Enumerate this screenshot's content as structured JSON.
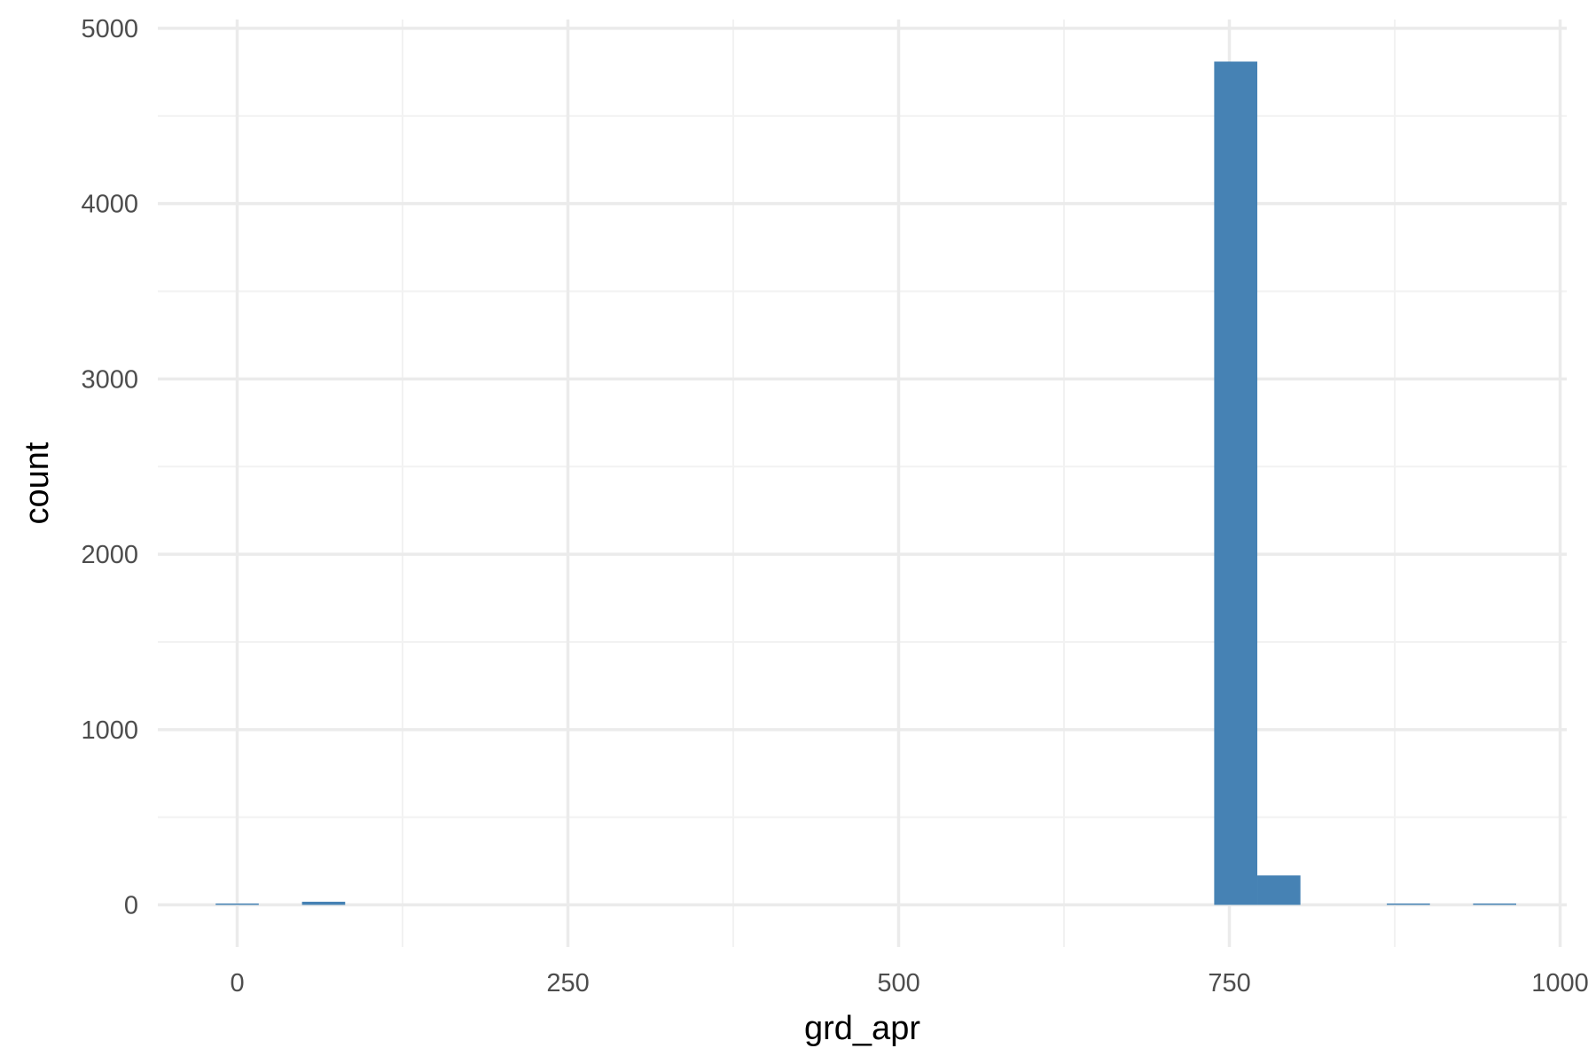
{
  "chart_data": {
    "type": "histogram",
    "title": "",
    "xlabel": "grd_apr",
    "ylabel": "count",
    "xlim": [
      -60,
      1005
    ],
    "ylim": [
      -240,
      5050
    ],
    "x_ticks": [
      0,
      250,
      500,
      750,
      1000
    ],
    "x_tick_labels": [
      "0",
      "250",
      "500",
      "750",
      "1000"
    ],
    "x_minor_ticks": [
      125,
      375,
      625,
      875
    ],
    "y_ticks": [
      0,
      1000,
      2000,
      3000,
      4000,
      5000
    ],
    "y_tick_labels": [
      "0",
      "1000",
      "2000",
      "3000",
      "4000",
      "5000"
    ],
    "y_minor_ticks": [
      500,
      1500,
      2500,
      3500,
      4500
    ],
    "grid": true,
    "bin_width": 32.6,
    "bins": [
      {
        "x0": -16.3,
        "x1": 16.3,
        "count": 4
      },
      {
        "x0": 49,
        "x1": 81.6,
        "count": 18
      },
      {
        "x0": 738.5,
        "x1": 771.1,
        "count": 4810
      },
      {
        "x0": 771.1,
        "x1": 803.7,
        "count": 168
      },
      {
        "x0": 869,
        "x1": 901.6,
        "count": 3
      },
      {
        "x0": 934.2,
        "x1": 966.8,
        "count": 3
      }
    ],
    "colors": {
      "bar": "#4682b4",
      "grid_major": "#ebebeb",
      "grid_minor": "#f2f2f2",
      "tick_text": "#4d4d4d",
      "title_text": "#000000"
    }
  }
}
